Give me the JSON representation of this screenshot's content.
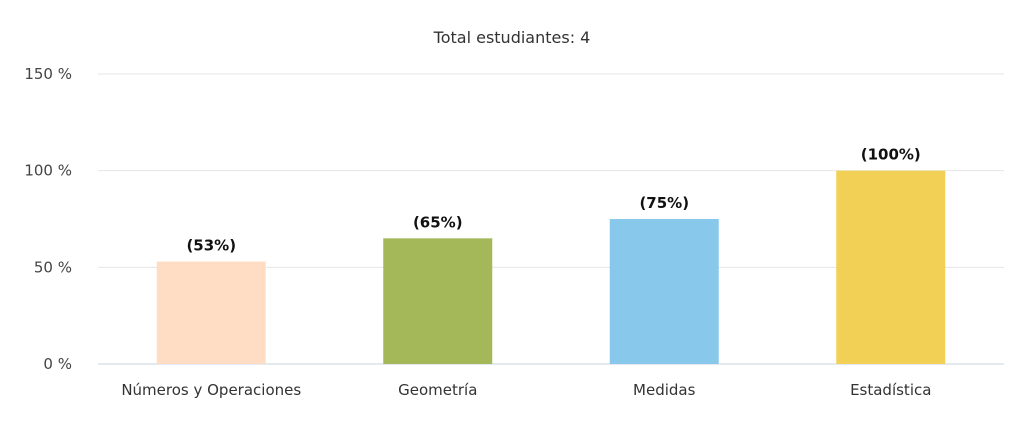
{
  "chart_data": {
    "type": "bar",
    "title": "Total estudiantes: 4",
    "categories": [
      "Números y Operaciones",
      "Geometría",
      "Medidas",
      "Estadística"
    ],
    "values": [
      53,
      65,
      75,
      100
    ],
    "value_labels": [
      "(53%)",
      "(65%)",
      "(75%)",
      "(100%)"
    ],
    "colors": [
      "#FFDDC5",
      "#A4B85A",
      "#88C8EB",
      "#F2D056"
    ],
    "ylim": [
      0,
      150
    ],
    "yticks": [
      0,
      50,
      100,
      150
    ],
    "ytick_labels": [
      "0 %",
      "50 %",
      "100 %",
      "150 %"
    ],
    "grid": true,
    "xlabel": "",
    "ylabel": ""
  }
}
